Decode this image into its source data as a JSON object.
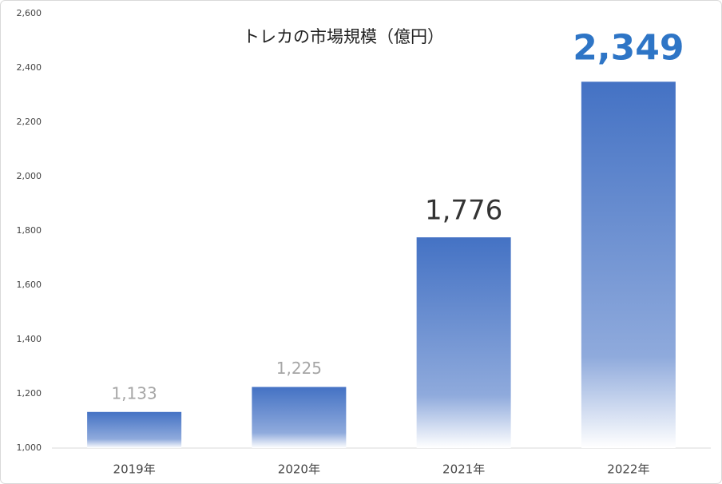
{
  "chart_data": {
    "type": "bar",
    "title": "トレカの市場規模（億円）",
    "categories": [
      "2019年",
      "2020年",
      "2021年",
      "2022年"
    ],
    "values": [
      1133,
      1225,
      1776,
      2349
    ],
    "value_labels": [
      "1,133",
      "1,225",
      "1,776",
      "2,349"
    ],
    "color": "#4472c4",
    "ylim": [
      1000,
      2600
    ],
    "yticks": [
      {
        "value": 1000,
        "label": "1,000"
      },
      {
        "value": 1200,
        "label": "1,200"
      },
      {
        "value": 1400,
        "label": "1,400"
      },
      {
        "value": 1600,
        "label": "1,600"
      },
      {
        "value": 1800,
        "label": "1,800"
      },
      {
        "value": 2000,
        "label": "2,000"
      },
      {
        "value": 2200,
        "label": "2,200"
      },
      {
        "value": 2400,
        "label": "2,400"
      },
      {
        "value": 2600,
        "label": "2,600"
      }
    ],
    "grid": false
  }
}
